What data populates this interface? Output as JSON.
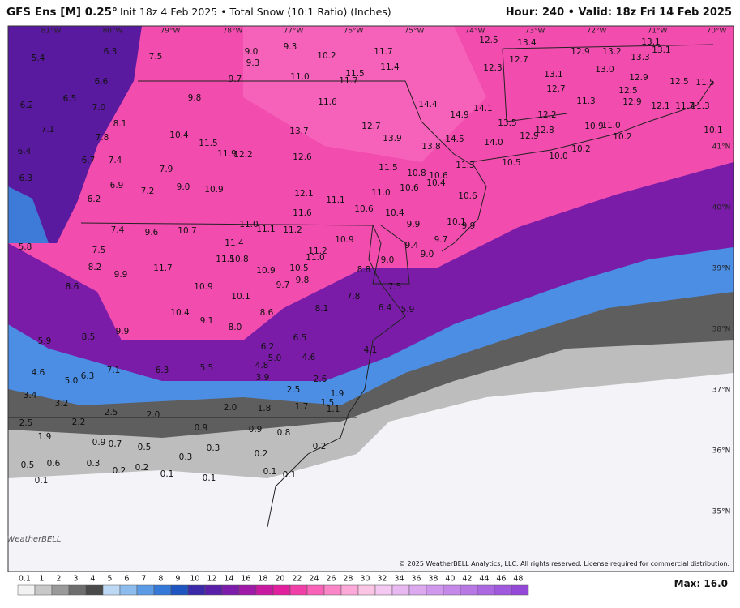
{
  "header": {
    "title": "GFS Ens [M] 0.25°",
    "subtitle": "Init 18z 4 Feb 2025 • Total Snow (10:1 Ratio) (Inches)",
    "valid": "Hour: 240 • Valid: 18z Fri 14 Feb 2025"
  },
  "map": {
    "lon_labels": [
      "81°W",
      "80°W",
      "79°W",
      "78°W",
      "77°W",
      "76°W",
      "75°W",
      "74°W",
      "73°W",
      "72°W",
      "71°W",
      "70°W"
    ],
    "lat_labels": [
      "41°N",
      "40°N",
      "39°N",
      "38°N",
      "37°N",
      "36°N",
      "35°N"
    ],
    "point_labels": [
      "5.4",
      "6.3",
      "7.5",
      "9.0",
      "9.3",
      "9.3",
      "10.2",
      "11.7",
      "11.4",
      "12.5",
      "13.4",
      "12.9",
      "13.2",
      "13.3",
      "13.1",
      "13.1",
      "12.7",
      "12.3",
      "13.0",
      "13.1",
      "12.9",
      "11.5",
      "11.0",
      "11.5",
      "11.7",
      "9.7",
      "6.6",
      "6.2",
      "6.5",
      "7.0",
      "9.8",
      "11.6",
      "14.4",
      "14.1",
      "14.9",
      "12.2",
      "12.7",
      "11.3",
      "12.5",
      "12.9",
      "12.1",
      "11.7",
      "11.3",
      "12.5",
      "7.1",
      "8.1",
      "7.8",
      "10.4",
      "13.7",
      "12.7",
      "13.9",
      "13.5",
      "12.8",
      "12.9",
      "10.9",
      "11.0",
      "10.2",
      "10.1",
      "6.4",
      "11.5",
      "11.9",
      "12.2",
      "12.6",
      "13.8",
      "14.5",
      "14.0",
      "10.2",
      "10.0",
      "6.7",
      "7.4",
      "7.9",
      "11.3",
      "10.5",
      "6.3",
      "6.9",
      "7.2",
      "9.0",
      "10.9",
      "11.5",
      "10.8",
      "10.6",
      "10.4",
      "10.6",
      "10.6",
      "6.2",
      "12.1",
      "11.1",
      "11.0",
      "11.6",
      "10.6",
      "10.4",
      "9.9",
      "10.1",
      "9.9",
      "7.4",
      "9.6",
      "10.7",
      "11.0",
      "11.1",
      "11.2",
      "10.9",
      "9.7",
      "9.4",
      "5.8",
      "7.5",
      "11.4",
      "11.5",
      "10.8",
      "11.2",
      "11.0",
      "9.0",
      "9.0",
      "8.2",
      "9.9",
      "11.7",
      "10.9",
      "10.5",
      "9.8",
      "9.7",
      "8.8",
      "8.6",
      "10.9",
      "10.1",
      "7.8",
      "7.5",
      "8.6",
      "8.1",
      "6.4",
      "5.9",
      "10.4",
      "9.1",
      "8.0",
      "8.5",
      "9.9",
      "6.5",
      "5.9",
      "6.2",
      "5.0",
      "4.6",
      "4.1",
      "4.8",
      "4.6",
      "5.0",
      "6.3",
      "7.1",
      "6.3",
      "5.5",
      "3.9",
      "2.6",
      "3.4",
      "3.2",
      "2.5",
      "1.9",
      "1.5",
      "1.7",
      "2.5",
      "2.0",
      "2.0",
      "1.8",
      "1.1",
      "2.5",
      "2.2",
      "0.9",
      "0.9",
      "0.8",
      "1.9",
      "0.9",
      "0.7",
      "0.5",
      "0.3",
      "0.2",
      "0.2",
      "0.3",
      "0.5",
      "0.6",
      "0.3",
      "0.2",
      "0.2",
      "0.1",
      "0.1",
      "0.1",
      "0.1",
      "0.1"
    ],
    "logo": "WeatherBELL",
    "copyright": "© 2025 WeatherBELL Analytics, LLC. All rights reserved. License required for commercial distribution."
  },
  "colorbar": {
    "labels": [
      "0.1",
      "1",
      "2",
      "3",
      "4",
      "5",
      "6",
      "7",
      "8",
      "9",
      "10",
      "12",
      "14",
      "16",
      "18",
      "20",
      "22",
      "24",
      "26",
      "28",
      "30",
      "32",
      "34",
      "36",
      "38",
      "40",
      "42",
      "44",
      "46",
      "48"
    ],
    "colors": [
      "#f2f2f2",
      "#c8c8c8",
      "#9a9a9a",
      "#6e6e6e",
      "#4a4a4a",
      "#bcd8f4",
      "#8cbcee",
      "#5b9be6",
      "#3478d8",
      "#1f55c0",
      "#3a2aa8",
      "#5a1fa8",
      "#7c1caa",
      "#a01aa8",
      "#c81aa0",
      "#e0209c",
      "#f040a8",
      "#f862b8",
      "#fa86c8",
      "#fca8d8",
      "#fcc4e4",
      "#f4c8f0",
      "#e8b8f0",
      "#dca8ee",
      "#d098ec",
      "#c488e8",
      "#b878e4",
      "#ac68e0",
      "#a058dc",
      "#9448d8"
    ],
    "max": "Max: 16.0"
  }
}
